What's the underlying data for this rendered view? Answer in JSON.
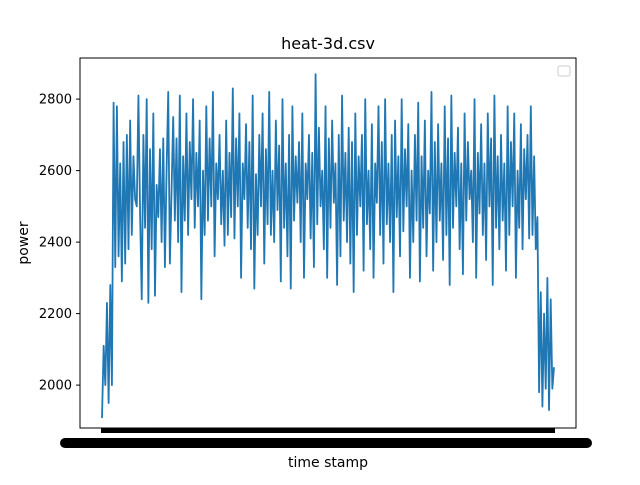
{
  "chart_data": {
    "type": "line",
    "title": "heat-3d.csv",
    "xlabel": "time stamp",
    "ylabel": "power",
    "ylim": [
      1880,
      2915
    ],
    "yticks": [
      2000,
      2200,
      2400,
      2600,
      2800
    ],
    "x_tick_labels_note": "",
    "grid": false,
    "legend": {
      "placement": "top-right",
      "entries": []
    },
    "colors": {
      "series": "#1f77b4",
      "axes": "#000000"
    },
    "series": [
      {
        "values": [
          1908,
          2110,
          2000,
          2230,
          1950,
          2280,
          2000,
          2790,
          2330,
          2780,
          2360,
          2620,
          2290,
          2680,
          2340,
          2700,
          2380,
          2740,
          2420,
          2640,
          2520,
          2500,
          2810,
          2480,
          2240,
          2700,
          2440,
          2800,
          2230,
          2660,
          2380,
          2760,
          2250,
          2560,
          2470,
          2660,
          2400,
          2690,
          2330,
          2600,
          2820,
          2340,
          2540,
          2750,
          2460,
          2690,
          2400,
          2810,
          2260,
          2640,
          2460,
          2760,
          2420,
          2680,
          2520,
          2800,
          2440,
          2650,
          2500,
          2740,
          2240,
          2600,
          2420,
          2780,
          2460,
          2690,
          2500,
          2820,
          2360,
          2620,
          2520,
          2700,
          2450,
          2600,
          2390,
          2740,
          2420,
          2650,
          2470,
          2830,
          2410,
          2690,
          2500,
          2760,
          2300,
          2620,
          2520,
          2730,
          2440,
          2680,
          2380,
          2810,
          2270,
          2590,
          2420,
          2700,
          2500,
          2760,
          2340,
          2660,
          2450,
          2820,
          2420,
          2600,
          2400,
          2740,
          2490,
          2670,
          2290,
          2800,
          2440,
          2620,
          2360,
          2700,
          2270,
          2780,
          2460,
          2640,
          2510,
          2680,
          2400,
          2760,
          2300,
          2620,
          2520,
          2700,
          2410,
          2650,
          2330,
          2870,
          2450,
          2720,
          2500,
          2600,
          2380,
          2780,
          2300,
          2690,
          2440,
          2740,
          2510,
          2620,
          2280,
          2700,
          2360,
          2810,
          2460,
          2650,
          2400,
          2720,
          2340,
          2680,
          2260,
          2760,
          2420,
          2640,
          2500,
          2700,
          2320,
          2800,
          2450,
          2600,
          2380,
          2730,
          2300,
          2620,
          2510,
          2780,
          2420,
          2680,
          2340,
          2800,
          2450,
          2620,
          2400,
          2700,
          2260,
          2740,
          2470,
          2640,
          2360,
          2800,
          2430,
          2660,
          2500,
          2730,
          2300,
          2600,
          2400,
          2700,
          2460,
          2790,
          2290,
          2640,
          2440,
          2740,
          2360,
          2600,
          2480,
          2820,
          2320,
          2680,
          2400,
          2730,
          2460,
          2620,
          2350,
          2780,
          2420,
          2690,
          2280,
          2810,
          2440,
          2650,
          2500,
          2720,
          2380,
          2620,
          2310,
          2760,
          2460,
          2680,
          2520,
          2600,
          2400,
          2800,
          2300,
          2650,
          2480,
          2730,
          2420,
          2620,
          2350,
          2760,
          2500,
          2690,
          2280,
          2810,
          2440,
          2640,
          2380,
          2700,
          2460,
          2620,
          2320,
          2780,
          2420,
          2680,
          2500,
          2760,
          2300,
          2600,
          2440,
          2730,
          2380,
          2660,
          2520,
          2700,
          2410,
          2780,
          2420,
          2640,
          2380,
          2470,
          1980,
          2260,
          1940,
          2200,
          1990,
          2300,
          1930,
          2240,
          1990,
          2050
        ],
        "color": "#1f77b4"
      }
    ]
  }
}
